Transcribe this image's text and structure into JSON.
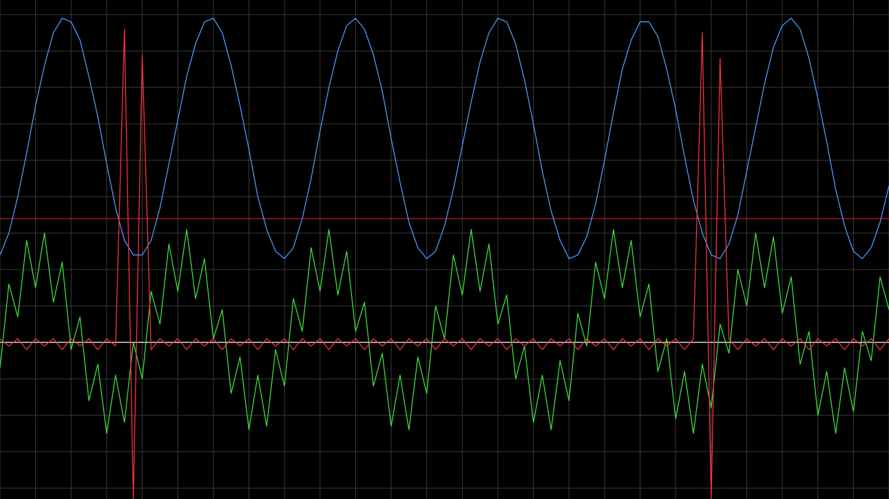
{
  "chart_data": {
    "type": "line",
    "x": [
      0,
      0.25,
      0.5,
      0.75,
      1,
      1.25,
      1.5,
      1.75,
      2,
      2.25,
      2.5,
      2.75,
      3,
      3.25,
      3.5,
      3.75,
      4,
      4.25,
      4.5,
      4.75,
      5,
      5.25,
      5.5,
      5.75,
      6,
      6.25,
      6.5,
      6.75,
      7,
      7.25,
      7.5,
      7.75,
      8,
      8.25,
      8.5,
      8.75,
      9,
      9.25,
      9.5,
      9.75,
      10,
      10.25,
      10.5,
      10.75,
      11,
      11.25,
      11.5,
      11.75,
      12,
      12.25,
      12.5,
      12.75,
      13,
      13.25,
      13.5,
      13.75,
      14,
      14.25,
      14.5,
      14.75,
      15,
      15.25,
      15.5,
      15.75,
      16,
      16.25,
      16.5,
      16.75,
      17,
      17.25,
      17.5,
      17.75,
      18,
      18.25,
      18.5,
      18.75,
      19,
      19.25,
      19.5,
      19.75,
      20,
      20.25,
      20.5,
      20.75,
      21,
      21.25,
      21.5,
      21.75,
      22,
      22.25,
      22.5,
      22.75,
      23,
      23.25,
      23.5,
      23.75,
      24,
      24.25,
      24.5,
      24.75,
      25
    ],
    "series": [
      {
        "color": "#4a9eff",
        "values": [
          2.4,
          3.0,
          4.0,
          5.2,
          6.5,
          7.6,
          8.5,
          8.9,
          8.8,
          8.3,
          7.3,
          6.2,
          4.9,
          3.7,
          2.8,
          2.4,
          2.4,
          2.8,
          3.7,
          4.9,
          6.1,
          7.3,
          8.2,
          8.8,
          8.9,
          8.5,
          7.6,
          6.5,
          5.3,
          4.0,
          3.1,
          2.5,
          2.3,
          2.6,
          3.4,
          4.5,
          5.8,
          7.0,
          8.0,
          8.7,
          8.9,
          8.6,
          7.9,
          6.9,
          5.6,
          4.4,
          3.3,
          2.6,
          2.3,
          2.5,
          3.2,
          4.2,
          5.4,
          6.6,
          7.7,
          8.5,
          8.9,
          8.8,
          8.2,
          7.2,
          6.0,
          4.7,
          3.6,
          2.8,
          2.3,
          2.4,
          2.9,
          3.8,
          5.0,
          6.3,
          7.5,
          8.3,
          8.8,
          8.8,
          8.4,
          7.5,
          6.4,
          5.1,
          3.9,
          3.0,
          2.4,
          2.3,
          2.7,
          3.5,
          4.7,
          5.9,
          7.1,
          8.1,
          8.7,
          8.9,
          8.6,
          7.8,
          6.7,
          5.5,
          4.2,
          3.2,
          2.5,
          2.3,
          2.6,
          3.3,
          4.3
        ]
      },
      {
        "color": "#3de03d",
        "values": [
          -0.7,
          1.6,
          0.7,
          2.8,
          1.5,
          3.0,
          1.1,
          2.2,
          -0.2,
          0.7,
          -1.6,
          -0.6,
          -2.5,
          -0.9,
          -2.2,
          0.0,
          -1.0,
          1.4,
          0.5,
          2.7,
          1.4,
          3.1,
          1.2,
          2.3,
          0.1,
          0.9,
          -1.4,
          -0.4,
          -2.4,
          -0.9,
          -2.3,
          -0.2,
          -1.2,
          1.2,
          0.3,
          2.6,
          1.4,
          3.1,
          1.3,
          2.5,
          0.3,
          1.1,
          -1.2,
          -0.3,
          -2.3,
          -0.9,
          -2.4,
          -0.4,
          -1.4,
          1.0,
          0.1,
          2.4,
          1.3,
          3.1,
          1.4,
          2.7,
          0.5,
          1.3,
          -1.0,
          -0.1,
          -2.2,
          -0.9,
          -2.4,
          -0.5,
          -1.6,
          0.8,
          -0.1,
          2.2,
          1.2,
          3.1,
          1.5,
          2.8,
          0.7,
          1.6,
          -0.8,
          0.1,
          -2.1,
          -0.8,
          -2.5,
          -0.6,
          -1.8,
          0.5,
          -0.3,
          2.0,
          1.0,
          3.0,
          1.5,
          2.9,
          0.8,
          1.8,
          -0.6,
          0.3,
          -2.0,
          -0.8,
          -2.5,
          -0.7,
          -1.9,
          0.3,
          -0.5,
          1.8,
          0.9
        ]
      },
      {
        "color": "#ff3040",
        "values": [
          0.1,
          -0.1,
          0.1,
          -0.2,
          0.1,
          -0.1,
          0.1,
          -0.2,
          0.1,
          -0.1,
          0.1,
          -0.2,
          0.1,
          -0.1,
          8.6,
          -4.3,
          7.9,
          -0.2,
          0.1,
          -0.1,
          0.1,
          -0.2,
          0.1,
          -0.1,
          0.1,
          -0.2,
          0.1,
          -0.1,
          0.1,
          -0.2,
          0.1,
          -0.1,
          0.1,
          -0.2,
          0.1,
          -0.1,
          0.1,
          -0.2,
          0.1,
          -0.1,
          0.1,
          -0.2,
          0.1,
          -0.1,
          0.1,
          -0.2,
          0.1,
          -0.1,
          0.1,
          -0.2,
          0.1,
          -0.1,
          0.1,
          -0.2,
          0.1,
          -0.1,
          0.1,
          -0.2,
          0.1,
          -0.1,
          0.1,
          -0.2,
          0.1,
          -0.1,
          0.1,
          -0.2,
          0.1,
          -0.1,
          0.1,
          -0.2,
          0.1,
          -0.1,
          0.1,
          -0.2,
          0.1,
          -0.1,
          0.1,
          -0.2,
          0.1,
          8.5,
          -4.3,
          7.8,
          0.1,
          -0.2,
          0.1,
          -0.1,
          0.1,
          -0.2,
          0.1,
          -0.1,
          0.1,
          -0.2,
          0.1,
          -0.1,
          0.1,
          -0.2,
          0.1,
          -0.1,
          0.1,
          -0.2,
          0.1
        ]
      }
    ],
    "hlines": [
      {
        "value": 3.4,
        "color": "#a01818"
      },
      {
        "value": 0,
        "color": "#d8d8d8"
      }
    ],
    "xlim": [
      0,
      25
    ],
    "ylim": [
      -4.3,
      9.4
    ],
    "grid": true,
    "grid_step": 1,
    "grid_color": "#3c3c3c",
    "background": "#000000"
  }
}
